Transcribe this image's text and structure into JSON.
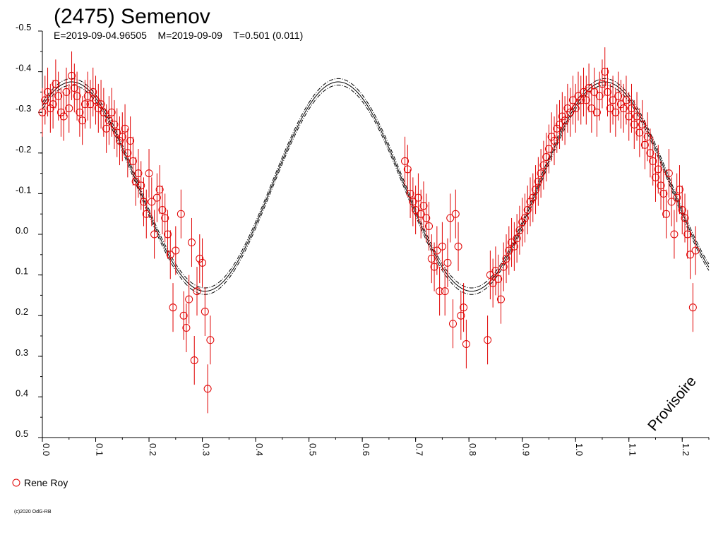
{
  "chart_data": {
    "type": "scatter",
    "title": "(2475) Semenov",
    "subtitle": "E=2019-09-04.96505    M=2019-09-09    T=0.501 (0.011)",
    "xlabel": "",
    "ylabel": "",
    "xlim": [
      0.0,
      1.25
    ],
    "ylim": [
      -0.5,
      0.5
    ],
    "y_inverted": true,
    "x_ticks": [
      "0.0",
      "0.1",
      "0.2",
      "0.3",
      "0.4",
      "0.5",
      "0.6",
      "0.7",
      "0.8",
      "0.9",
      "1.0",
      "1.1",
      "1.2"
    ],
    "y_ticks": [
      "-0.5",
      "-0.4",
      "-0.3",
      "-0.2",
      "-0.1",
      "0.0",
      "0.1",
      "0.2",
      "0.3",
      "0.4",
      "0.5"
    ],
    "grid": false,
    "legend": {
      "placement": "bottom-left",
      "entries": [
        {
          "label": "Rene Roy",
          "color": "#e00000",
          "marker": "open-circle"
        }
      ]
    },
    "watermark": "Provisoire",
    "copyright": "(c)2020 OdG-RB",
    "fit": {
      "style": "solid-with-dashdot-envelope",
      "color": "#000000",
      "peak_phase_1": 0.055,
      "peak_mag_1": -0.375,
      "min_phase_1": 0.305,
      "min_mag_1": 0.14,
      "peak_phase_2": 0.555,
      "peak_mag_2": -0.375,
      "min_phase_2": 0.805,
      "min_mag_2": 0.14
    },
    "series": [
      {
        "name": "Rene Roy",
        "color": "#e00000",
        "points": [
          [
            0.0,
            -0.3,
            0.06
          ],
          [
            0.005,
            -0.33,
            0.06
          ],
          [
            0.01,
            -0.35,
            0.06
          ],
          [
            0.015,
            -0.31,
            0.06
          ],
          [
            0.02,
            -0.32,
            0.06
          ],
          [
            0.025,
            -0.37,
            0.06
          ],
          [
            0.03,
            -0.34,
            0.06
          ],
          [
            0.035,
            -0.3,
            0.06
          ],
          [
            0.04,
            -0.29,
            0.06
          ],
          [
            0.045,
            -0.35,
            0.06
          ],
          [
            0.05,
            -0.31,
            0.06
          ],
          [
            0.055,
            -0.39,
            0.06
          ],
          [
            0.06,
            -0.36,
            0.06
          ],
          [
            0.065,
            -0.34,
            0.06
          ],
          [
            0.07,
            -0.3,
            0.06
          ],
          [
            0.075,
            -0.28,
            0.06
          ],
          [
            0.08,
            -0.32,
            0.06
          ],
          [
            0.085,
            -0.34,
            0.06
          ],
          [
            0.09,
            -0.32,
            0.06
          ],
          [
            0.095,
            -0.35,
            0.06
          ],
          [
            0.1,
            -0.33,
            0.06
          ],
          [
            0.105,
            -0.31,
            0.06
          ],
          [
            0.11,
            -0.32,
            0.06
          ],
          [
            0.115,
            -0.3,
            0.06
          ],
          [
            0.12,
            -0.26,
            0.06
          ],
          [
            0.125,
            -0.28,
            0.06
          ],
          [
            0.13,
            -0.3,
            0.06
          ],
          [
            0.135,
            -0.27,
            0.06
          ],
          [
            0.14,
            -0.25,
            0.06
          ],
          [
            0.145,
            -0.23,
            0.06
          ],
          [
            0.15,
            -0.24,
            0.06
          ],
          [
            0.155,
            -0.26,
            0.06
          ],
          [
            0.16,
            -0.2,
            0.06
          ],
          [
            0.165,
            -0.23,
            0.06
          ],
          [
            0.17,
            -0.18,
            0.06
          ],
          [
            0.175,
            -0.13,
            0.06
          ],
          [
            0.18,
            -0.15,
            0.06
          ],
          [
            0.185,
            -0.12,
            0.06
          ],
          [
            0.19,
            -0.08,
            0.06
          ],
          [
            0.195,
            -0.05,
            0.06
          ],
          [
            0.2,
            -0.15,
            0.06
          ],
          [
            0.205,
            -0.08,
            0.06
          ],
          [
            0.21,
            0.0,
            0.06
          ],
          [
            0.215,
            -0.09,
            0.06
          ],
          [
            0.22,
            -0.11,
            0.06
          ],
          [
            0.225,
            -0.06,
            0.06
          ],
          [
            0.23,
            -0.04,
            0.06
          ],
          [
            0.235,
            0.0,
            0.06
          ],
          [
            0.24,
            0.05,
            0.06
          ],
          [
            0.245,
            0.18,
            0.06
          ],
          [
            0.25,
            0.04,
            0.06
          ],
          [
            0.26,
            -0.05,
            0.06
          ],
          [
            0.265,
            0.2,
            0.06
          ],
          [
            0.27,
            0.23,
            0.06
          ],
          [
            0.275,
            0.16,
            0.06
          ],
          [
            0.28,
            0.02,
            0.06
          ],
          [
            0.285,
            0.31,
            0.06
          ],
          [
            0.29,
            0.14,
            0.06
          ],
          [
            0.295,
            0.06,
            0.06
          ],
          [
            0.3,
            0.07,
            0.06
          ],
          [
            0.305,
            0.19,
            0.06
          ],
          [
            0.31,
            0.38,
            0.06
          ],
          [
            0.315,
            0.26,
            0.06
          ],
          [
            0.68,
            -0.18,
            0.06
          ],
          [
            0.685,
            -0.16,
            0.06
          ],
          [
            0.69,
            -0.1,
            0.06
          ],
          [
            0.695,
            -0.08,
            0.06
          ],
          [
            0.7,
            -0.06,
            0.06
          ],
          [
            0.705,
            -0.09,
            0.06
          ],
          [
            0.71,
            -0.05,
            0.06
          ],
          [
            0.715,
            -0.07,
            0.06
          ],
          [
            0.72,
            -0.04,
            0.06
          ],
          [
            0.725,
            -0.02,
            0.06
          ],
          [
            0.73,
            0.06,
            0.06
          ],
          [
            0.735,
            0.08,
            0.06
          ],
          [
            0.74,
            0.04,
            0.06
          ],
          [
            0.745,
            0.14,
            0.06
          ],
          [
            0.75,
            0.03,
            0.06
          ],
          [
            0.755,
            0.14,
            0.06
          ],
          [
            0.76,
            0.07,
            0.06
          ],
          [
            0.765,
            -0.04,
            0.06
          ],
          [
            0.77,
            0.22,
            0.06
          ],
          [
            0.775,
            -0.05,
            0.06
          ],
          [
            0.78,
            0.03,
            0.06
          ],
          [
            0.785,
            0.2,
            0.06
          ],
          [
            0.79,
            0.18,
            0.06
          ],
          [
            0.795,
            0.27,
            0.06
          ],
          [
            0.835,
            0.26,
            0.06
          ],
          [
            0.84,
            0.1,
            0.06
          ],
          [
            0.845,
            0.12,
            0.06
          ],
          [
            0.85,
            0.09,
            0.06
          ],
          [
            0.855,
            0.11,
            0.06
          ],
          [
            0.86,
            0.16,
            0.06
          ],
          [
            0.865,
            0.08,
            0.06
          ],
          [
            0.87,
            0.06,
            0.06
          ],
          [
            0.875,
            0.04,
            0.06
          ],
          [
            0.88,
            0.02,
            0.06
          ],
          [
            0.885,
            0.03,
            0.06
          ],
          [
            0.89,
            0.01,
            0.06
          ],
          [
            0.895,
            -0.01,
            0.06
          ],
          [
            0.9,
            -0.03,
            0.06
          ],
          [
            0.905,
            -0.04,
            0.06
          ],
          [
            0.91,
            -0.06,
            0.06
          ],
          [
            0.915,
            -0.08,
            0.06
          ],
          [
            0.92,
            -0.09,
            0.06
          ],
          [
            0.925,
            -0.11,
            0.06
          ],
          [
            0.93,
            -0.13,
            0.06
          ],
          [
            0.935,
            -0.15,
            0.06
          ],
          [
            0.94,
            -0.17,
            0.06
          ],
          [
            0.945,
            -0.19,
            0.06
          ],
          [
            0.95,
            -0.21,
            0.06
          ],
          [
            0.955,
            -0.24,
            0.06
          ],
          [
            0.96,
            -0.23,
            0.06
          ],
          [
            0.965,
            -0.26,
            0.06
          ],
          [
            0.97,
            -0.27,
            0.06
          ],
          [
            0.975,
            -0.29,
            0.06
          ],
          [
            0.98,
            -0.28,
            0.06
          ],
          [
            0.985,
            -0.31,
            0.06
          ],
          [
            0.99,
            -0.3,
            0.06
          ],
          [
            0.995,
            -0.33,
            0.06
          ],
          [
            1.0,
            -0.31,
            0.06
          ],
          [
            1.005,
            -0.34,
            0.06
          ],
          [
            1.01,
            -0.33,
            0.06
          ],
          [
            1.015,
            -0.35,
            0.06
          ],
          [
            1.02,
            -0.33,
            0.06
          ],
          [
            1.025,
            -0.36,
            0.06
          ],
          [
            1.03,
            -0.31,
            0.06
          ],
          [
            1.035,
            -0.35,
            0.06
          ],
          [
            1.04,
            -0.3,
            0.06
          ],
          [
            1.045,
            -0.34,
            0.06
          ],
          [
            1.05,
            -0.37,
            0.06
          ],
          [
            1.055,
            -0.4,
            0.06
          ],
          [
            1.06,
            -0.35,
            0.06
          ],
          [
            1.065,
            -0.31,
            0.06
          ],
          [
            1.07,
            -0.33,
            0.06
          ],
          [
            1.075,
            -0.3,
            0.06
          ],
          [
            1.08,
            -0.34,
            0.06
          ],
          [
            1.085,
            -0.32,
            0.06
          ],
          [
            1.09,
            -0.31,
            0.06
          ],
          [
            1.095,
            -0.33,
            0.06
          ],
          [
            1.1,
            -0.29,
            0.06
          ],
          [
            1.105,
            -0.31,
            0.06
          ],
          [
            1.11,
            -0.27,
            0.06
          ],
          [
            1.115,
            -0.29,
            0.06
          ],
          [
            1.12,
            -0.25,
            0.06
          ],
          [
            1.125,
            -0.27,
            0.06
          ],
          [
            1.13,
            -0.22,
            0.06
          ],
          [
            1.135,
            -0.24,
            0.06
          ],
          [
            1.14,
            -0.2,
            0.06
          ],
          [
            1.145,
            -0.18,
            0.06
          ],
          [
            1.15,
            -0.14,
            0.06
          ],
          [
            1.155,
            -0.16,
            0.06
          ],
          [
            1.16,
            -0.12,
            0.06
          ],
          [
            1.165,
            -0.1,
            0.06
          ],
          [
            1.17,
            -0.05,
            0.06
          ],
          [
            1.175,
            -0.15,
            0.06
          ],
          [
            1.18,
            -0.08,
            0.06
          ],
          [
            1.185,
            0.0,
            0.06
          ],
          [
            1.19,
            -0.09,
            0.06
          ],
          [
            1.195,
            -0.11,
            0.06
          ],
          [
            1.2,
            -0.06,
            0.06
          ],
          [
            1.205,
            -0.04,
            0.06
          ],
          [
            1.21,
            0.0,
            0.06
          ],
          [
            1.215,
            0.05,
            0.06
          ],
          [
            1.22,
            0.18,
            0.06
          ],
          [
            1.225,
            0.04,
            0.06
          ]
        ]
      }
    ]
  }
}
